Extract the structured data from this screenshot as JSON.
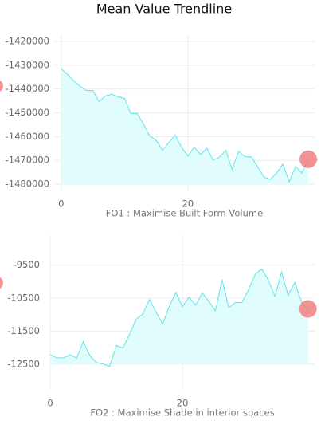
{
  "title": "Mean Value Trendline",
  "chart_data": [
    {
      "type": "area",
      "xlabel": "FO1 : Maximise Built Form Volume",
      "x": [
        0,
        1,
        2,
        3,
        4,
        5,
        6,
        7,
        8,
        9,
        10,
        11,
        12,
        13,
        14,
        15,
        16,
        17,
        18,
        19,
        20,
        21,
        22,
        23,
        24,
        25,
        26,
        27,
        28,
        29,
        30,
        31,
        32,
        33,
        34,
        35,
        36,
        37,
        38,
        39
      ],
      "values": [
        -1431500,
        -1433800,
        -1436500,
        -1438900,
        -1440600,
        -1440600,
        -1445300,
        -1442900,
        -1442200,
        -1443300,
        -1444000,
        -1450300,
        -1450300,
        -1454700,
        -1459800,
        -1461500,
        -1465800,
        -1462500,
        -1459400,
        -1464500,
        -1468200,
        -1464500,
        -1467500,
        -1464900,
        -1469900,
        -1468600,
        -1465800,
        -1473900,
        -1466100,
        -1468500,
        -1468500,
        -1472600,
        -1477000,
        -1478000,
        -1475300,
        -1471600,
        -1479000,
        -1472600,
        -1475300,
        -1469500
      ],
      "color": "#5fe3ea",
      "fill": "#e0fcfd",
      "marker_color": "#f07f7f",
      "xlim": [
        -1.1,
        40
      ],
      "ylim": [
        -1483000,
        -1417000
      ],
      "xticks": [
        0,
        20
      ],
      "yticks": [
        -1420000,
        -1430000,
        -1440000,
        -1450000,
        -1460000,
        -1470000,
        -1480000
      ],
      "grid": true
    },
    {
      "type": "area",
      "xlabel": "FO2 : Maximise Shade in interior spaces",
      "x": [
        0,
        1,
        2,
        3,
        4,
        5,
        6,
        7,
        8,
        9,
        10,
        11,
        12,
        13,
        14,
        15,
        16,
        17,
        18,
        19,
        20,
        21,
        22,
        23,
        24,
        25,
        26,
        27,
        28,
        29,
        30,
        31,
        32,
        33,
        34,
        35,
        36,
        37,
        38,
        39
      ],
      "values": [
        -12210,
        -12310,
        -12310,
        -12210,
        -12310,
        -11820,
        -12240,
        -12450,
        -12500,
        -12570,
        -11940,
        -12010,
        -11600,
        -11140,
        -10990,
        -10540,
        -10920,
        -11290,
        -10760,
        -10330,
        -10760,
        -10470,
        -10720,
        -10350,
        -10600,
        -10890,
        -9940,
        -10790,
        -10640,
        -10640,
        -10250,
        -9790,
        -9620,
        -9960,
        -10450,
        -9720,
        -10420,
        -10030,
        -10610,
        -10830
      ],
      "color": "#5fe3ea",
      "fill": "#e0fcfd",
      "marker_color": "#f07f7f",
      "xlim": [
        0,
        40
      ],
      "ylim": [
        -13300,
        -8600
      ],
      "xticks": [
        0,
        20
      ],
      "yticks": [
        -9500,
        -10500,
        -11500,
        -12500
      ],
      "grid": true
    }
  ]
}
